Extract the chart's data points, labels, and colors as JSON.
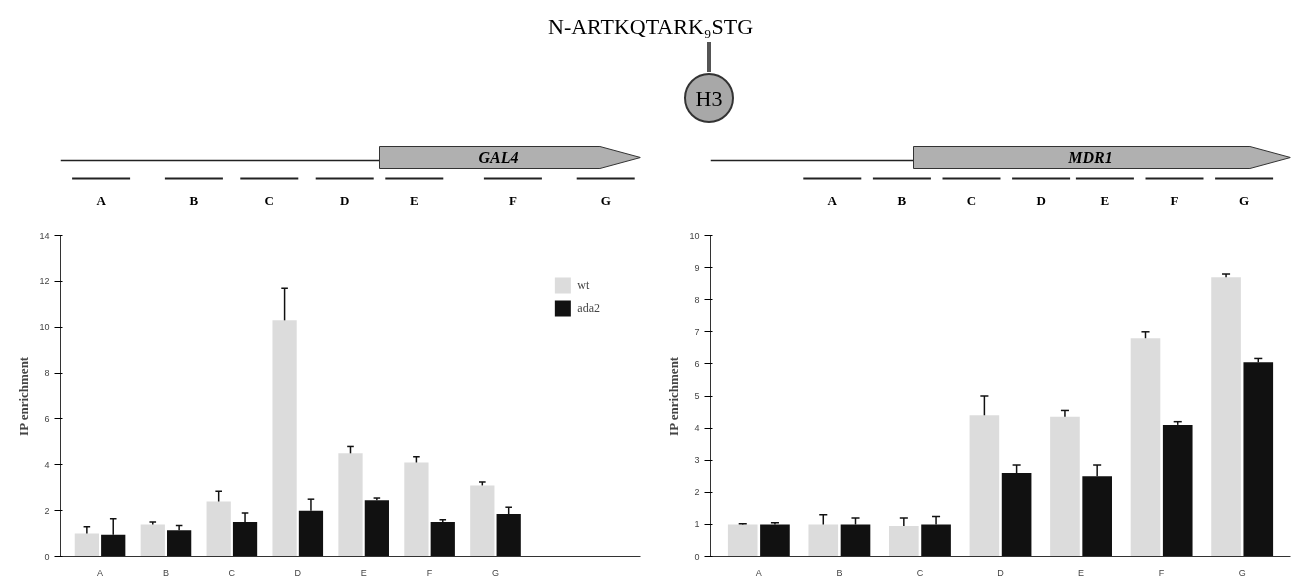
{
  "chart_data": [
    {
      "type": "other",
      "annotations": [
        "N-ARTKQTARK₉STG",
        "H3"
      ]
    },
    {
      "type": "bar",
      "categories": [
        "A",
        "B",
        "C",
        "D",
        "E",
        "F",
        "G"
      ],
      "ylabel": "IP enrichment",
      "ylim": [
        0,
        14
      ],
      "yticks": [
        0,
        2,
        4,
        6,
        8,
        10,
        12,
        14
      ],
      "grid": false,
      "legend": "right",
      "annotations": [
        "GAL4",
        "A",
        "B",
        "C",
        "D",
        "E",
        "F",
        "G"
      ],
      "series": [
        {
          "name": "wt",
          "color": "#dcdcdc",
          "values": [
            1.0,
            1.4,
            2.4,
            10.3,
            4.5,
            4.1,
            3.1
          ],
          "errors": [
            0.3,
            0.1,
            0.45,
            1.4,
            0.3,
            0.25,
            0.15
          ]
        },
        {
          "name": "ada2",
          "color": "#111111",
          "values": [
            0.95,
            1.15,
            1.5,
            2.0,
            2.45,
            1.5,
            1.85
          ],
          "errors": [
            0.7,
            0.2,
            0.4,
            0.5,
            0.1,
            0.1,
            0.3
          ]
        }
      ]
    },
    {
      "type": "bar",
      "categories": [
        "A",
        "B",
        "C",
        "D",
        "E",
        "F",
        "G"
      ],
      "ylabel": "IP enrichment",
      "ylim": [
        0,
        10
      ],
      "yticks": [
        0,
        1,
        2,
        3,
        4,
        5,
        6,
        7,
        8,
        9,
        10
      ],
      "grid": false,
      "annotations": [
        "MDR1",
        "A",
        "B",
        "C",
        "D",
        "E",
        "F",
        "G"
      ],
      "series": [
        {
          "color": "#dcdcdc",
          "values": [
            1.0,
            1.0,
            0.95,
            4.4,
            4.35,
            6.8,
            8.7
          ],
          "errors": [
            0.02,
            0.3,
            0.25,
            0.6,
            0.2,
            0.2,
            0.1
          ]
        },
        {
          "color": "#111111",
          "values": [
            1.0,
            1.0,
            1.0,
            2.6,
            2.5,
            4.1,
            6.05
          ],
          "errors": [
            0.05,
            0.2,
            0.25,
            0.25,
            0.35,
            0.1,
            0.12
          ]
        }
      ]
    }
  ]
}
